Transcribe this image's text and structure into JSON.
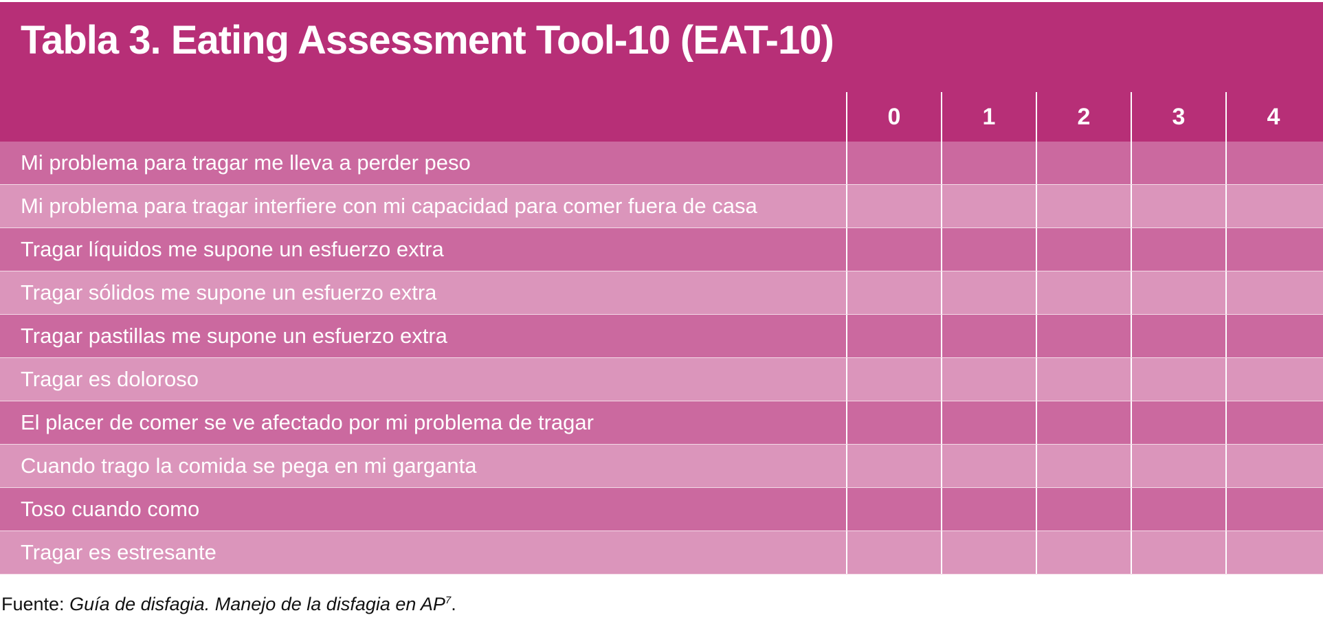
{
  "table": {
    "title": "Tabla 3. Eating Assessment Tool-10 (EAT-10)",
    "score_columns": [
      "0",
      "1",
      "2",
      "3",
      "4"
    ],
    "rows": [
      "Mi problema para tragar me lleva a perder peso",
      "Mi problema para tragar interfiere con mi capacidad para comer fuera de casa",
      "Tragar líquidos me supone un esfuerzo extra",
      "Tragar sólidos me supone un esfuerzo extra",
      "Tragar pastillas me supone un esfuerzo extra",
      "Tragar es doloroso",
      "El placer de comer se ve afectado por mi problema de tragar",
      "Cuando trago la comida se pega en mi garganta",
      "Toso cuando como",
      "Tragar es estresante"
    ],
    "colors": {
      "header": "#b72f77",
      "row_dark": "#cb699f",
      "row_light": "#db95bb"
    }
  },
  "footer": {
    "prefix": "Fuente: ",
    "source": "Guía de disfagia. Manejo de la disfagia en AP",
    "superscript": "7",
    "suffix": "."
  }
}
